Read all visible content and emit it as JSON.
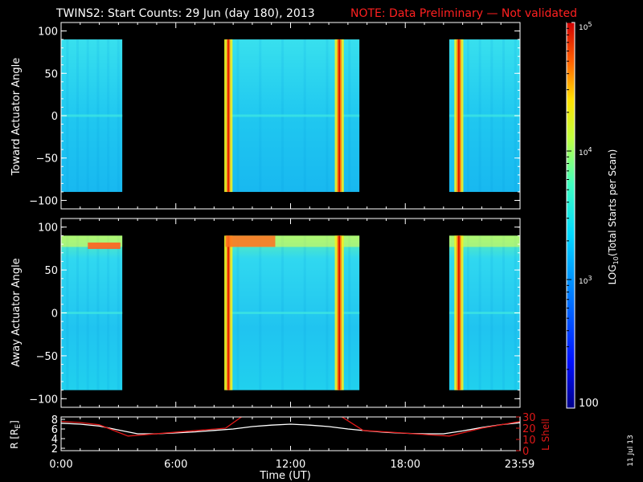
{
  "title": "TWINS2: Start Counts: 29 Jun (day 180), 2013",
  "note": "NOTE: Data Preliminary — Not validated",
  "date_stamp": "11 Jul 13",
  "colors": {
    "background": "#000000",
    "axes": "#ffffff",
    "note": "#ff2020",
    "lshell": "#e01818",
    "radius": "#ffffff"
  },
  "chart_data": [
    {
      "type": "heatmap",
      "panel": "top",
      "ylabel": "Toward Actuator Angle",
      "ylim": [
        -110,
        110
      ],
      "yticks": [
        100,
        50,
        0,
        -50,
        -100
      ],
      "xlim": [
        0,
        24
      ],
      "data_angle_range": [
        -90,
        90
      ],
      "coverage_hours": [
        [
          0,
          3.2
        ],
        [
          8.6,
          15.6
        ],
        [
          20.3,
          24
        ]
      ],
      "spikes_hours": [
        {
          "t": 8.75,
          "w": 0.18
        },
        {
          "t": 14.55,
          "w": 0.22
        },
        {
          "t": 20.8,
          "w": 0.22
        }
      ]
    },
    {
      "type": "heatmap",
      "panel": "middle",
      "ylabel": "Away Actuator Angle",
      "ylim": [
        -110,
        110
      ],
      "yticks": [
        100,
        50,
        0,
        -50,
        -100
      ],
      "xlim": [
        0,
        24
      ],
      "data_angle_range": [
        -90,
        90
      ],
      "coverage_hours": [
        [
          0,
          3.2
        ],
        [
          8.6,
          15.6
        ],
        [
          20.3,
          24
        ]
      ],
      "spikes_hours": [
        {
          "t": 8.75,
          "w": 0.18
        },
        {
          "t": 14.55,
          "w": 0.22
        },
        {
          "t": 20.8,
          "w": 0.22
        }
      ]
    },
    {
      "type": "line",
      "panel": "bottom",
      "ylabel": "R [R",
      "ylabel_sub": "E",
      "ylabel_end": "]",
      "ylim": [
        1.5,
        8.5
      ],
      "yticks": [
        2,
        4,
        6,
        8
      ],
      "y2label": "L Shell",
      "y2lim": [
        0,
        30
      ],
      "y2ticks": [
        0,
        10,
        20,
        30
      ],
      "xlabel": "Time (UT)",
      "xlim": [
        0,
        24
      ],
      "xticks": [
        0,
        6,
        12,
        18,
        23.98
      ],
      "xticklabels": [
        "0:00",
        "6:00",
        "12:00",
        "18:00",
        "23:59"
      ],
      "series": [
        {
          "axis": "R",
          "x": [
            0,
            1,
            2,
            3,
            4,
            5,
            6,
            7,
            8,
            9,
            10,
            11,
            12,
            13,
            14,
            15,
            16,
            17,
            18,
            19,
            20,
            21,
            22,
            23,
            24
          ],
          "y": [
            7.2,
            7.0,
            6.6,
            5.8,
            5.0,
            5.0,
            5.2,
            5.4,
            5.7,
            6.0,
            6.5,
            6.8,
            7.0,
            6.8,
            6.5,
            6.0,
            5.6,
            5.3,
            5.1,
            5.0,
            5.0,
            5.6,
            6.3,
            6.9,
            7.3
          ]
        },
        {
          "axis": "L",
          "x": [
            0,
            1,
            2,
            3.5,
            8.6,
            9.6,
            14.5,
            15.8,
            20.3,
            22,
            24
          ],
          "y": [
            26,
            25,
            23,
            13,
            20,
            32,
            32,
            18,
            13,
            20,
            26
          ]
        }
      ]
    }
  ],
  "colorbar": {
    "label_prefix": "LOG",
    "label_sub": "10",
    "label_rest": "(Total Starts per Scan)",
    "range": [
      100,
      100000
    ],
    "ticks": [
      {
        "value": 100000,
        "base": "10",
        "exp": "5"
      },
      {
        "value": 10000,
        "base": "10",
        "exp": "4"
      },
      {
        "value": 1000,
        "base": "10",
        "exp": "3"
      }
    ],
    "min_label": "100"
  }
}
